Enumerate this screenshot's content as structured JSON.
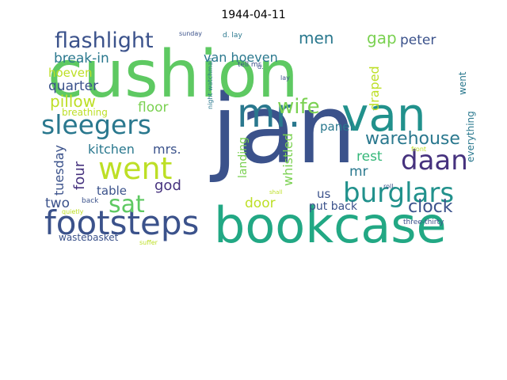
{
  "title": "1944-04-11",
  "colors": {
    "background": "#ffffff",
    "title_text": "#000000",
    "palette": [
      "#440154",
      "#3b528b",
      "#21918c",
      "#2a788e",
      "#22a884",
      "#5ec962",
      "#7ad151",
      "#bddf26",
      "#35b779",
      "#fde725"
    ]
  },
  "words": [
    {
      "text": "jan",
      "color": "#3b528b"
    },
    {
      "text": "cushion",
      "color": "#5ec962"
    },
    {
      "text": "bookcase",
      "color": "#22a884"
    },
    {
      "text": "van",
      "color": "#21918c"
    },
    {
      "text": "mr.",
      "color": "#2a788e"
    },
    {
      "text": "footsteps",
      "color": "#3b528b"
    },
    {
      "text": "sleegers",
      "color": "#2a788e"
    },
    {
      "text": "went",
      "color": "#bddf26"
    },
    {
      "text": "sat",
      "color": "#5ec962"
    },
    {
      "text": "burglars",
      "color": "#21918c"
    },
    {
      "text": "daan",
      "color": "#46327e"
    },
    {
      "text": "flashlight",
      "color": "#3b528b"
    },
    {
      "text": "warehouse",
      "color": "#2a788e"
    },
    {
      "text": "pillow",
      "color": "#bddf26"
    },
    {
      "text": "wife",
      "color": "#7ad151"
    },
    {
      "text": "clock",
      "color": "#3b528b"
    },
    {
      "text": "men",
      "color": "#2a788e"
    },
    {
      "text": "gap",
      "color": "#7ad151"
    },
    {
      "text": "peter",
      "color": "#3b528b"
    },
    {
      "text": "break-in",
      "color": "#2a788e"
    },
    {
      "text": "hoeven",
      "color": "#bddf26"
    },
    {
      "text": "van hoeven",
      "color": "#2a788e"
    },
    {
      "text": "quarter",
      "color": "#3b528b"
    },
    {
      "text": "kitchen",
      "color": "#2a788e"
    },
    {
      "text": "floor",
      "color": "#7ad151"
    },
    {
      "text": "mrs.",
      "color": "#3b528b"
    },
    {
      "text": "four",
      "color": "#46327e"
    },
    {
      "text": "tuesday",
      "color": "#3b528b"
    },
    {
      "text": "god",
      "color": "#46327e"
    },
    {
      "text": "table",
      "color": "#3b528b"
    },
    {
      "text": "two",
      "color": "#3b528b"
    },
    {
      "text": "door",
      "color": "#bddf26"
    },
    {
      "text": "us",
      "color": "#3b528b"
    },
    {
      "text": "rest",
      "color": "#35b779"
    },
    {
      "text": "mr",
      "color": "#2a788e"
    },
    {
      "text": "panel",
      "color": "#2a788e"
    },
    {
      "text": "draped",
      "color": "#bddf26"
    },
    {
      "text": "whistled",
      "color": "#7ad151"
    },
    {
      "text": "landing",
      "color": "#7ad151"
    },
    {
      "text": "put back",
      "color": "#3b528b"
    },
    {
      "text": "wastebasket",
      "color": "#3b528b"
    },
    {
      "text": "everything",
      "color": "#2a788e"
    },
    {
      "text": "went",
      "color": "#2a788e"
    },
    {
      "text": "breathing",
      "color": "#bddf26"
    },
    {
      "text": "tell mr.",
      "color": "#3b528b"
    },
    {
      "text": "d. lay",
      "color": "#2a788e"
    },
    {
      "text": "sunday",
      "color": "#3b528b"
    },
    {
      "text": "night watchman",
      "color": "#2a788e"
    },
    {
      "text": "three-thirty",
      "color": "#3b528b"
    },
    {
      "text": "quietly",
      "color": "#bddf26"
    },
    {
      "text": "back",
      "color": "#3b528b"
    },
    {
      "text": "shall",
      "color": "#bddf26"
    },
    {
      "text": "roll",
      "color": "#3b528b"
    },
    {
      "text": "front",
      "color": "#bddf26"
    },
    {
      "text": "suffer",
      "color": "#bddf26"
    },
    {
      "text": "lay",
      "color": "#3b528b"
    },
    {
      "text": "d.",
      "color": "#3b528b"
    }
  ]
}
